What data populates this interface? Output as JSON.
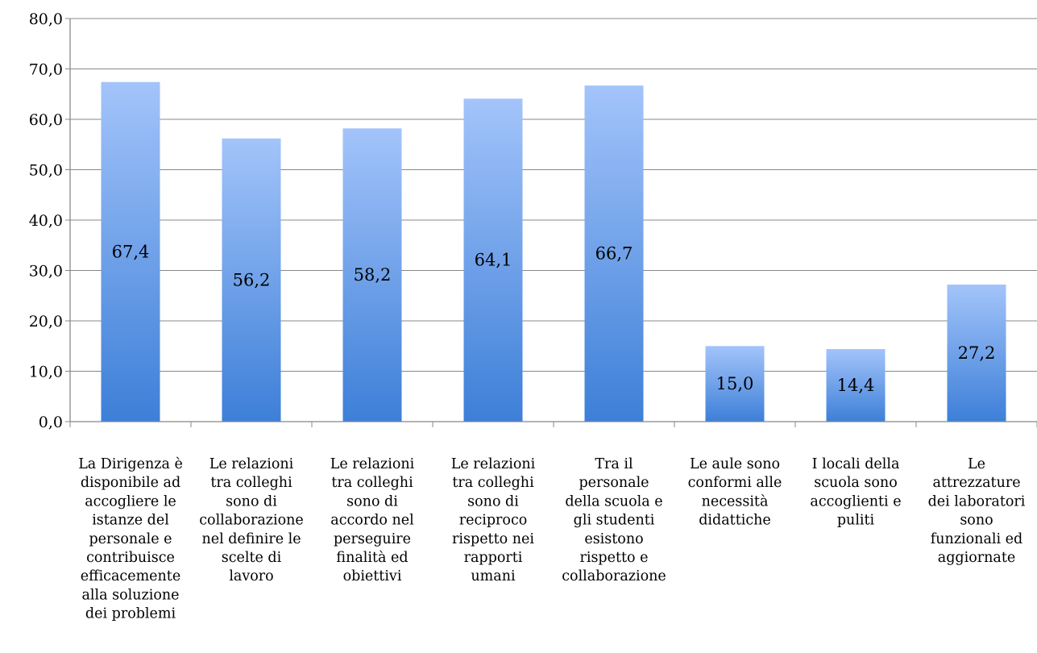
{
  "chart_data": {
    "type": "bar",
    "categories": [
      [
        "La Dirigenza è",
        "disponibile ad",
        "accogliere le",
        "istanze del",
        "personale e",
        "contribuisce",
        "efficacemente",
        "alla soluzione",
        "dei problemi"
      ],
      [
        "Le relazioni",
        "tra colleghi",
        "sono di",
        "collaborazione",
        "nel definire le",
        "scelte di",
        "lavoro"
      ],
      [
        "Le relazioni",
        "tra colleghi",
        "sono di",
        "accordo nel",
        "perseguire",
        "finalità ed",
        "obiettivi"
      ],
      [
        "Le relazioni",
        "tra colleghi",
        "sono di",
        "reciproco",
        "rispetto nei",
        "rapporti",
        "umani"
      ],
      [
        "Tra il",
        "personale",
        "della scuola e",
        "gli studenti",
        "esistono",
        "rispetto e",
        "collaborazione"
      ],
      [
        "Le aule sono",
        "conformi alle",
        "necessità",
        "didattiche"
      ],
      [
        "I locali della",
        "scuola sono",
        "accoglienti e",
        "puliti"
      ],
      [
        "Le",
        "attrezzature",
        "dei laboratori",
        "sono",
        "funzionali ed",
        "aggiornate"
      ]
    ],
    "values": [
      67.4,
      56.2,
      58.2,
      64.1,
      66.7,
      15.0,
      14.4,
      27.2
    ],
    "data_labels": [
      "67,4",
      "56,2",
      "58,2",
      "64,1",
      "66,7",
      "15,0",
      "14,4",
      "27,2"
    ],
    "yticks": [
      "0,0",
      "10,0",
      "20,0",
      "30,0",
      "40,0",
      "50,0",
      "60,0",
      "70,0",
      "80,0"
    ],
    "ylim": [
      0,
      80
    ],
    "title": "",
    "xlabel": "",
    "ylabel": "",
    "grid": true,
    "legend": "none",
    "colors": {
      "bar_top": "#a3c4fa",
      "bar_bottom": "#3d7fd8",
      "grid": "#888888",
      "axis": "#888888"
    }
  }
}
